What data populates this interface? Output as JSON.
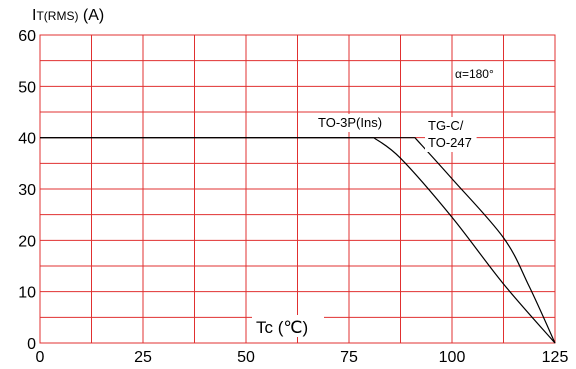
{
  "chart_data": {
    "type": "line",
    "title": "",
    "ylabel": {
      "main": "I",
      "sub": "T(RMS)",
      "unit": " (A)"
    },
    "xlabel": {
      "main": "Tc",
      "unit": " (℃)"
    },
    "xlim": [
      0,
      125
    ],
    "ylim": [
      0,
      60
    ],
    "x_ticks": [
      0,
      25,
      50,
      75,
      100,
      125
    ],
    "y_ticks": [
      0,
      10,
      20,
      30,
      40,
      50,
      60
    ],
    "grid": true,
    "grid_minor": true,
    "grid_color": "#e03030",
    "line_color": "#000000",
    "annotation": "α=180°",
    "series": [
      {
        "name": "TO-3P(Ins)",
        "label_lines": [
          "TO-3P(Ins)"
        ],
        "points": [
          [
            0,
            40
          ],
          [
            81,
            40
          ],
          [
            87.5,
            36
          ],
          [
            100,
            24.5
          ],
          [
            112.5,
            11.5
          ],
          [
            125,
            0
          ]
        ]
      },
      {
        "name": "TG-C/ TO-247",
        "label_lines": [
          "TG-C/",
          "TO-247"
        ],
        "points": [
          [
            0,
            40
          ],
          [
            91,
            40
          ],
          [
            100,
            32
          ],
          [
            112.5,
            20.5
          ],
          [
            118.75,
            11
          ],
          [
            125,
            0
          ]
        ]
      }
    ]
  }
}
